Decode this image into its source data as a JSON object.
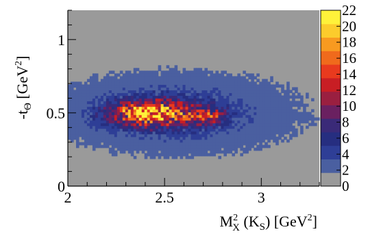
{
  "chart_data": {
    "type": "heatmap",
    "title": "",
    "xlabel": {
      "main": "M",
      "sup": "2",
      "sub": "X",
      "rest": " (K",
      "rest_sub": "S",
      "unit": ") [GeV",
      "unit_sup": "2",
      "unit_end": "]"
    },
    "ylabel": {
      "main": "-t",
      "sub": "Θ",
      "unit": " [GeV",
      "unit_sup": "2",
      "unit_end": "]"
    },
    "xlim": [
      2.0,
      3.3
    ],
    "ylim": [
      0.0,
      1.2
    ],
    "xticks": [
      {
        "value": 2,
        "label": "2"
      },
      {
        "value": 2.5,
        "label": "2.5"
      },
      {
        "value": 3,
        "label": "3"
      }
    ],
    "yticks": [
      {
        "value": 0,
        "label": "0"
      },
      {
        "value": 0.5,
        "label": "0.5"
      },
      {
        "value": 1,
        "label": "1"
      }
    ],
    "colorbar": {
      "min": 0,
      "max": 22,
      "ticks": [
        "0",
        "2",
        "4",
        "6",
        "8",
        "10",
        "12",
        "14",
        "16",
        "18",
        "20",
        "22"
      ]
    },
    "background_color": "#9a9a9a",
    "palette": [
      "#9a9a9a",
      "#4a5fa0",
      "#2e3e96",
      "#262e80",
      "#3a2a78",
      "#6a2060",
      "#9a1f40",
      "#c81e24",
      "#e83a1e",
      "#f06a1c",
      "#f89a20",
      "#fccc2c",
      "#fff23a"
    ],
    "density_regions": [
      {
        "x_center": 2.55,
        "y_center": 0.5,
        "x_sigma": 0.33,
        "y_sigma": 0.14,
        "peak_value": 5
      },
      {
        "x_center": 2.42,
        "y_center": 0.5,
        "x_sigma": 0.14,
        "y_sigma": 0.06,
        "peak_value": 16
      },
      {
        "x_center": 2.72,
        "y_center": 0.48,
        "x_sigma": 0.07,
        "y_sigma": 0.04,
        "peak_value": 8
      }
    ]
  }
}
